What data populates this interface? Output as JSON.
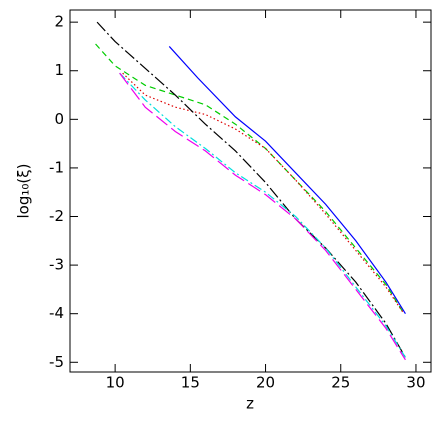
{
  "chart_data": {
    "type": "line",
    "xlabel": "z",
    "ylabel": "log₁₀(ξ)",
    "xlim": [
      7,
      31
    ],
    "ylim": [
      -5.2,
      2.25
    ],
    "xticks": [
      10,
      15,
      20,
      25,
      30
    ],
    "yticks": [
      -5,
      -4,
      -3,
      -2,
      -1,
      0,
      1,
      2
    ],
    "series": [
      {
        "color": "#0000ff",
        "dash": "none",
        "x": [
          13.6,
          15.5,
          18,
          20,
          22,
          24,
          26,
          28,
          29.3
        ],
        "values": [
          1.5,
          0.85,
          0.05,
          -0.45,
          -1.1,
          -1.75,
          -2.5,
          -3.35,
          -4.0
        ]
      },
      {
        "color": "#00cc00",
        "dash": "6,4",
        "x": [
          8.7,
          10,
          12,
          14,
          16,
          18,
          20,
          22,
          24,
          26,
          28,
          29.2
        ],
        "values": [
          1.55,
          1.1,
          0.7,
          0.5,
          0.3,
          -0.1,
          -0.6,
          -1.25,
          -1.9,
          -2.65,
          -3.4,
          -4.0
        ]
      },
      {
        "color": "#dd0000",
        "dash": "1.5,2.5",
        "x": [
          10.5,
          12,
          14,
          16,
          18,
          20,
          22,
          24,
          26,
          28,
          29.2
        ],
        "values": [
          0.95,
          0.5,
          0.25,
          0.1,
          -0.2,
          -0.6,
          -1.25,
          -1.95,
          -2.7,
          -3.45,
          -4.0
        ]
      },
      {
        "color": "#000000",
        "dash": "12,3,2,3",
        "x": [
          8.8,
          10,
          12,
          14,
          16,
          18,
          20,
          22,
          24,
          26,
          28,
          29.3
        ],
        "values": [
          2.0,
          1.6,
          1.05,
          0.5,
          -0.1,
          -0.65,
          -1.3,
          -2.05,
          -2.65,
          -3.35,
          -4.2,
          -4.9
        ]
      },
      {
        "color": "#00dddd",
        "dash": "8,3,2,3",
        "x": [
          10.3,
          12,
          14,
          16,
          18,
          20,
          22,
          24,
          26,
          28,
          29.3
        ],
        "values": [
          0.95,
          0.4,
          -0.15,
          -0.6,
          -1.1,
          -1.5,
          -2.0,
          -2.65,
          -3.45,
          -4.25,
          -4.9
        ]
      },
      {
        "color": "#ee00ee",
        "dash": "14,5",
        "x": [
          10.3,
          12,
          14,
          16,
          18,
          20,
          22,
          24,
          26,
          28,
          29.3
        ],
        "values": [
          0.95,
          0.25,
          -0.25,
          -0.65,
          -1.15,
          -1.55,
          -2.05,
          -2.7,
          -3.5,
          -4.3,
          -4.95
        ]
      }
    ]
  }
}
